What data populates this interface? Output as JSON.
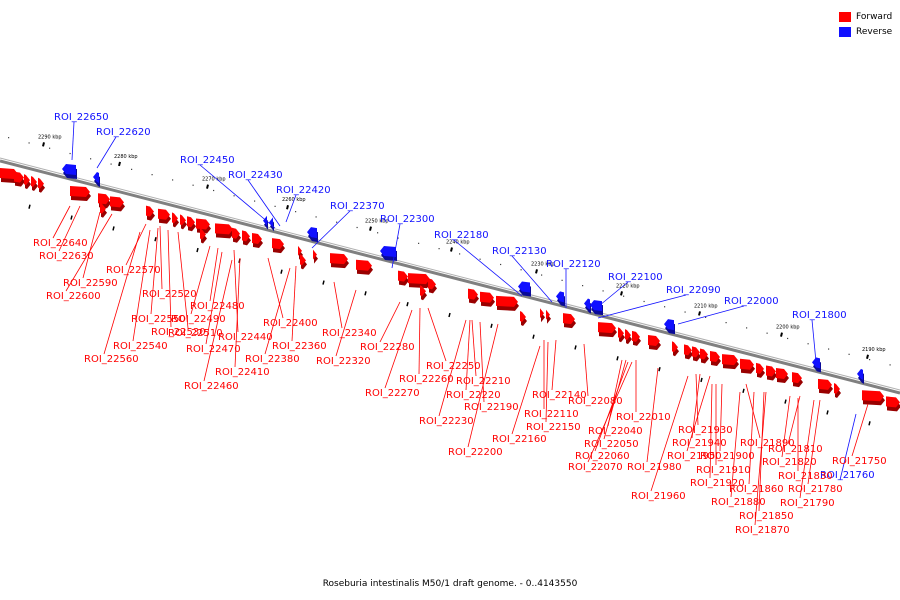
{
  "colors": {
    "forward": "#ff0000",
    "reverse": "#1010ff",
    "backbone": "#808080"
  },
  "legend": [
    {
      "label": "Forward",
      "color": "#ff0000"
    },
    {
      "label": "Reverse",
      "color": "#1010ff"
    }
  ],
  "caption": "Roseburia intestinalis M50/1 draft genome. - 0..4143550",
  "scale_ticks": [
    "2290 kbp",
    "2280 kbp",
    "2270 kbp",
    "2260 kbp",
    "2250 kbp",
    "2240 kbp",
    "2230 kbp",
    "2220 kbp",
    "2210 kbp",
    "2200 kbp",
    "2190 kbp"
  ],
  "reverse_labels": [
    "ROI_22650",
    "ROI_22620",
    "ROI_22450",
    "ROI_22430",
    "ROI_22420",
    "ROI_22370",
    "ROI_22300",
    "ROI_22180",
    "ROI_22130",
    "ROI_22120",
    "ROI_22100",
    "ROI_22090",
    "ROI_22000",
    "ROI_21800",
    "ROI_21760"
  ],
  "forward_labels": [
    "ROI_22640",
    "ROI_22630",
    "ROI_22590",
    "ROI_22600",
    "ROI_22570",
    "ROI_22520",
    "ROI_22550",
    "ROI_22530",
    "ROI_22510",
    "ROI_22540",
    "ROI_22560",
    "ROI_22480",
    "ROI_22490",
    "ROI_22440",
    "ROI_22470",
    "ROI_22400",
    "ROI_22410",
    "ROI_22460",
    "ROI_22360",
    "ROI_22380",
    "ROI_22340",
    "ROI_22320",
    "ROI_22280",
    "ROI_22250",
    "ROI_22260",
    "ROI_22270",
    "ROI_22210",
    "ROI_22220",
    "ROI_22230",
    "ROI_22190",
    "ROI_22200",
    "ROI_22140",
    "ROI_22110",
    "ROI_22150",
    "ROI_22160",
    "ROI_22080",
    "ROI_22010",
    "ROI_22040",
    "ROI_22050",
    "ROI_22060",
    "ROI_22070",
    "ROI_21930",
    "ROI_21940",
    "ROI_21950",
    "ROI_21980",
    "ROI_21960",
    "ROI_21890",
    "ROI_21900",
    "ROI_21910",
    "ROI_21920",
    "ROI_21810",
    "ROI_21820",
    "ROI_21830",
    "ROI_21860",
    "ROI_21880",
    "ROI_21850",
    "ROI_21870",
    "ROI_21750",
    "ROI_21780",
    "ROI_21790"
  ]
}
